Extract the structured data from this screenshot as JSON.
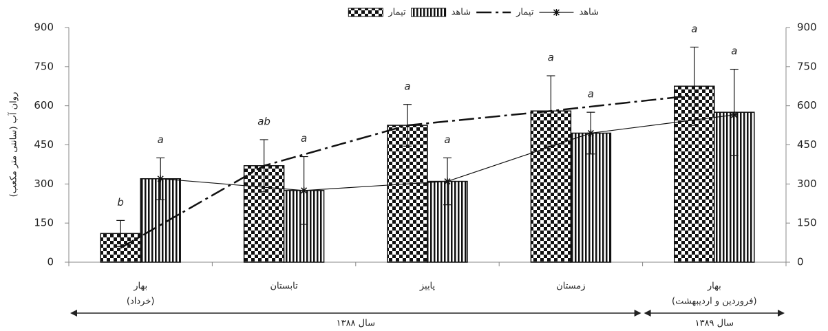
{
  "chart_data": {
    "type": "bar",
    "y_label": "روان آب (سانتی متر مکعب)",
    "categories": [
      "بهار",
      "تابستان",
      "پاییز",
      "زمستان",
      "بهار"
    ],
    "subcategories": [
      "(خرداد)",
      null,
      null,
      null,
      "(فروردین و اردیبهشت)"
    ],
    "periods": [
      "سال ۱۳۸۸",
      "سال ۱۳۸۹"
    ],
    "ylim": [
      0,
      900
    ],
    "yticks": [
      0,
      150,
      300,
      450,
      600,
      750,
      900
    ],
    "y2lim": [
      0,
      900
    ],
    "y2ticks": [
      0,
      150,
      300,
      450,
      600,
      750,
      900
    ],
    "series": [
      {
        "name": "تیمار",
        "type": "bar",
        "pattern": "checker",
        "color": "#111111",
        "values": [
          110,
          370,
          525,
          580,
          675
        ],
        "errors": [
          50,
          100,
          80,
          135,
          150
        ],
        "letters": [
          "b",
          "ab",
          "a",
          "a",
          "a"
        ]
      },
      {
        "name": "شاهد",
        "type": "bar",
        "pattern": "stripes",
        "color": "#111111",
        "values": [
          320,
          275,
          310,
          495,
          575
        ],
        "errors": [
          80,
          130,
          90,
          80,
          165
        ],
        "letters": [
          "a",
          "a",
          "a",
          "a",
          "a"
        ]
      },
      {
        "name": "تیمار",
        "type": "line",
        "dash": "22,6,4,6",
        "color": "#111111",
        "values": [
          55,
          370,
          525,
          580,
          640
        ]
      },
      {
        "name": "شاهد",
        "type": "line",
        "marker": "star",
        "color": "#111111",
        "values": [
          320,
          275,
          310,
          495,
          565
        ]
      }
    ]
  }
}
